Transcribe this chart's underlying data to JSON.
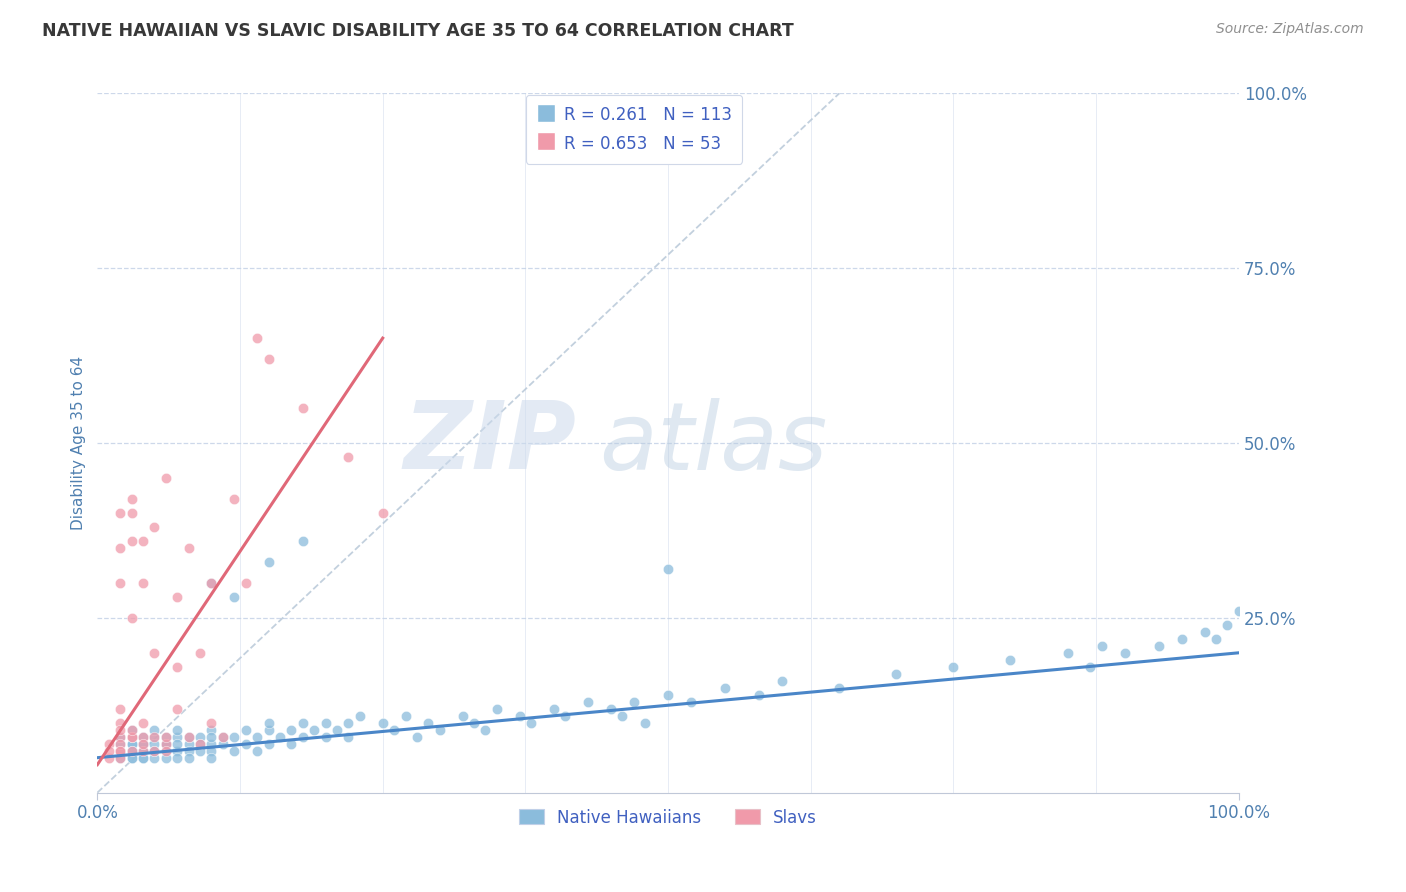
{
  "title": "NATIVE HAWAIIAN VS SLAVIC DISABILITY AGE 35 TO 64 CORRELATION CHART",
  "source_text": "Source: ZipAtlas.com",
  "ylabel": "Disability Age 35 to 64",
  "xlim": [
    0.0,
    1.0
  ],
  "ylim": [
    0.0,
    1.0
  ],
  "legend_label1": "Native Hawaiians",
  "legend_label2": "Slavs",
  "blue_color": "#8bbcdc",
  "pink_color": "#f09aaa",
  "blue_line_color": "#4a86c8",
  "pink_line_color": "#e06878",
  "background_color": "#ffffff",
  "grid_color": "#c8d4e8",
  "title_color": "#383838",
  "source_color": "#909090",
  "axis_label_color": "#5080b0",
  "watermark_zip_color": "#c8d8ec",
  "watermark_atlas_color": "#b0c8e0",
  "blue_R": 0.261,
  "blue_N": 113,
  "pink_R": 0.653,
  "pink_N": 53,
  "blue_x": [
    0.02,
    0.02,
    0.02,
    0.02,
    0.03,
    0.03,
    0.03,
    0.03,
    0.03,
    0.03,
    0.03,
    0.03,
    0.04,
    0.04,
    0.04,
    0.04,
    0.04,
    0.04,
    0.04,
    0.05,
    0.05,
    0.05,
    0.05,
    0.05,
    0.05,
    0.06,
    0.06,
    0.06,
    0.06,
    0.06,
    0.07,
    0.07,
    0.07,
    0.07,
    0.07,
    0.08,
    0.08,
    0.08,
    0.08,
    0.09,
    0.09,
    0.09,
    0.1,
    0.1,
    0.1,
    0.1,
    0.1,
    0.11,
    0.11,
    0.12,
    0.12,
    0.13,
    0.13,
    0.14,
    0.14,
    0.15,
    0.15,
    0.15,
    0.16,
    0.17,
    0.17,
    0.18,
    0.18,
    0.19,
    0.2,
    0.2,
    0.21,
    0.22,
    0.22,
    0.23,
    0.25,
    0.26,
    0.27,
    0.28,
    0.29,
    0.3,
    0.32,
    0.33,
    0.34,
    0.35,
    0.37,
    0.38,
    0.4,
    0.41,
    0.43,
    0.45,
    0.46,
    0.47,
    0.48,
    0.5,
    0.52,
    0.55,
    0.58,
    0.6,
    0.65,
    0.7,
    0.75,
    0.8,
    0.85,
    0.87,
    0.88,
    0.9,
    0.93,
    0.95,
    0.97,
    0.98,
    0.99,
    1.0,
    0.1,
    0.12,
    0.15,
    0.18,
    0.5
  ],
  "blue_y": [
    0.05,
    0.07,
    0.06,
    0.08,
    0.06,
    0.07,
    0.05,
    0.08,
    0.07,
    0.06,
    0.05,
    0.09,
    0.06,
    0.07,
    0.05,
    0.08,
    0.06,
    0.07,
    0.05,
    0.06,
    0.08,
    0.07,
    0.05,
    0.09,
    0.06,
    0.07,
    0.06,
    0.08,
    0.05,
    0.07,
    0.06,
    0.08,
    0.07,
    0.05,
    0.09,
    0.07,
    0.06,
    0.08,
    0.05,
    0.08,
    0.06,
    0.07,
    0.07,
    0.09,
    0.06,
    0.08,
    0.05,
    0.07,
    0.08,
    0.08,
    0.06,
    0.09,
    0.07,
    0.08,
    0.06,
    0.09,
    0.07,
    0.1,
    0.08,
    0.09,
    0.07,
    0.1,
    0.08,
    0.09,
    0.08,
    0.1,
    0.09,
    0.1,
    0.08,
    0.11,
    0.1,
    0.09,
    0.11,
    0.08,
    0.1,
    0.09,
    0.11,
    0.1,
    0.09,
    0.12,
    0.11,
    0.1,
    0.12,
    0.11,
    0.13,
    0.12,
    0.11,
    0.13,
    0.1,
    0.14,
    0.13,
    0.15,
    0.14,
    0.16,
    0.15,
    0.17,
    0.18,
    0.19,
    0.2,
    0.18,
    0.21,
    0.2,
    0.21,
    0.22,
    0.23,
    0.22,
    0.24,
    0.26,
    0.3,
    0.28,
    0.33,
    0.36,
    0.32
  ],
  "pink_x": [
    0.01,
    0.01,
    0.01,
    0.02,
    0.02,
    0.02,
    0.02,
    0.02,
    0.02,
    0.02,
    0.02,
    0.02,
    0.02,
    0.02,
    0.03,
    0.03,
    0.03,
    0.03,
    0.03,
    0.03,
    0.03,
    0.03,
    0.04,
    0.04,
    0.04,
    0.04,
    0.04,
    0.04,
    0.05,
    0.05,
    0.05,
    0.05,
    0.06,
    0.06,
    0.06,
    0.06,
    0.07,
    0.07,
    0.07,
    0.08,
    0.08,
    0.09,
    0.09,
    0.1,
    0.1,
    0.11,
    0.12,
    0.13,
    0.14,
    0.15,
    0.18,
    0.22,
    0.25
  ],
  "pink_y": [
    0.05,
    0.07,
    0.06,
    0.05,
    0.06,
    0.08,
    0.1,
    0.07,
    0.3,
    0.35,
    0.12,
    0.4,
    0.09,
    0.06,
    0.08,
    0.4,
    0.42,
    0.36,
    0.06,
    0.25,
    0.08,
    0.09,
    0.36,
    0.08,
    0.1,
    0.3,
    0.06,
    0.07,
    0.38,
    0.08,
    0.2,
    0.06,
    0.45,
    0.07,
    0.08,
    0.06,
    0.28,
    0.18,
    0.12,
    0.35,
    0.08,
    0.2,
    0.07,
    0.3,
    0.1,
    0.08,
    0.42,
    0.3,
    0.65,
    0.62,
    0.55,
    0.48,
    0.4
  ],
  "blue_line_x": [
    0.0,
    1.0
  ],
  "blue_line_y": [
    0.05,
    0.2
  ],
  "pink_line_x": [
    0.0,
    0.25
  ],
  "pink_line_y": [
    0.04,
    0.65
  ],
  "diag_line_x": [
    0.0,
    0.65
  ],
  "diag_line_y": [
    0.0,
    1.0
  ],
  "y_ticks": [
    0.25,
    0.5,
    0.75,
    1.0
  ],
  "y_tick_labels": [
    "25.0%",
    "50.0%",
    "75.0%",
    "100.0%"
  ],
  "x_ticks": [
    0.0,
    1.0
  ],
  "x_tick_labels": [
    "0.0%",
    "100.0%"
  ]
}
